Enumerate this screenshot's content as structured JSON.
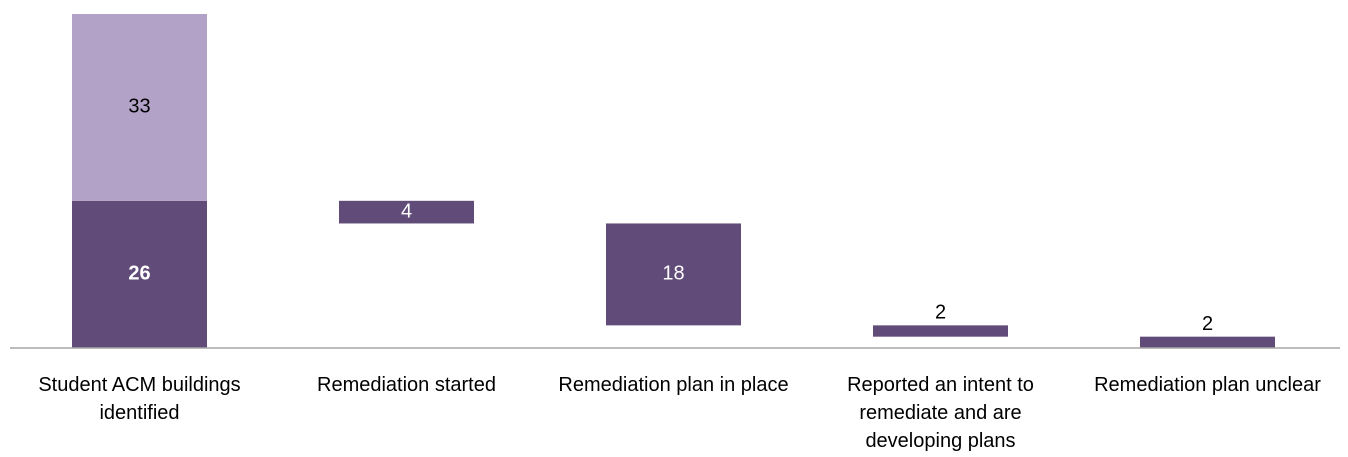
{
  "chart_data": {
    "type": "waterfall",
    "categories": [
      "Student ACM buildings identified",
      "Remediation started",
      "Remediation plan in place",
      "Reported an intent to remediate and are developing plans",
      "Remediation plan unclear"
    ],
    "measures": [
      "absolute",
      "decrease",
      "decrease",
      "decrease",
      "decrease"
    ],
    "series": [
      {
        "color": "#614b79",
        "values": [
          26,
          4,
          18,
          2,
          2
        ]
      },
      {
        "color": "#b3a2c8",
        "values": [
          33,
          null,
          null,
          null,
          null
        ]
      }
    ],
    "ylim": [
      0,
      59
    ]
  }
}
